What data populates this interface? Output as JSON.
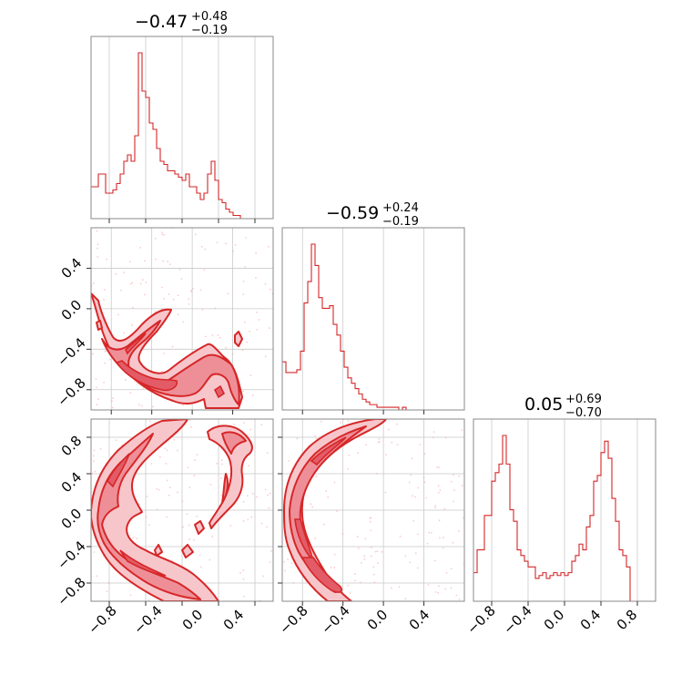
{
  "chart_data": [
    {
      "type": "histogram",
      "panel": "1d-param-1",
      "title": {
        "median": "−0.47",
        "plus": "+0.48",
        "minus": "−0.19"
      },
      "xlim": [
        -1.0,
        1.0
      ],
      "bin_edges_start": -1.0,
      "bin_width": 0.04,
      "counts": [
        10,
        10,
        14,
        14,
        8,
        8,
        9,
        11,
        14,
        18,
        20,
        18,
        26,
        52,
        40,
        38,
        30,
        28,
        22,
        18,
        17,
        15,
        15,
        14,
        13,
        12,
        14,
        10,
        10,
        8,
        6,
        8,
        14,
        18,
        12,
        6,
        5,
        3,
        2,
        1,
        1,
        0,
        0,
        0,
        0,
        0,
        0,
        0,
        0,
        0
      ],
      "xticks": [],
      "yticks": []
    },
    {
      "type": "histogram",
      "panel": "1d-param-2",
      "title": {
        "median": "−0.59",
        "plus": "+0.24",
        "minus": "−0.19"
      },
      "xlim": [
        -1.0,
        0.8
      ],
      "bin_edges_start": -1.0,
      "bin_width": 0.036,
      "counts": [
        18,
        14,
        14,
        14,
        15,
        22,
        40,
        48,
        62,
        54,
        42,
        38,
        38,
        39,
        32,
        28,
        22,
        16,
        12,
        10,
        8,
        6,
        4,
        3,
        2,
        2,
        1,
        1,
        1,
        1,
        1,
        1,
        0,
        1,
        0,
        0,
        0,
        0,
        0,
        0,
        0,
        0,
        0,
        0,
        0,
        0,
        0,
        0,
        0,
        0
      ],
      "xticks": [],
      "yticks": []
    },
    {
      "type": "histogram",
      "panel": "1d-param-3",
      "title": {
        "median": "0.05",
        "plus": "+0.69",
        "minus": "−0.70"
      },
      "xlim": [
        -1.0,
        1.0
      ],
      "bin_edges_start": -1.0,
      "bin_width": 0.04,
      "counts": [
        10,
        18,
        18,
        30,
        30,
        42,
        45,
        48,
        58,
        48,
        32,
        28,
        18,
        16,
        14,
        12,
        12,
        8,
        9,
        10,
        8,
        9,
        10,
        9,
        10,
        9,
        10,
        14,
        16,
        20,
        18,
        26,
        30,
        42,
        44,
        52,
        56,
        50,
        36,
        28,
        18,
        16,
        12,
        0,
        0,
        0,
        0,
        0,
        0,
        0
      ],
      "xticks": [
        "−0.8",
        "−0.4",
        "0.0",
        "0.4",
        "0.8"
      ],
      "xtick_values": [
        -0.8,
        -0.4,
        0.0,
        0.4,
        0.8
      ],
      "yticks": []
    },
    {
      "type": "contour",
      "panel": "2d-param-1-vs-param-2",
      "xlim": [
        -1.0,
        0.8
      ],
      "ylim": [
        -1.0,
        0.8
      ],
      "xticks": [],
      "yticks": [
        "−0.8",
        "−0.4",
        "0.0",
        "0.4"
      ],
      "ytick_values": [
        -0.8,
        -0.4,
        0.0,
        0.4
      ]
    },
    {
      "type": "contour",
      "panel": "2d-param-1-vs-param-3",
      "xlim": [
        -1.0,
        1.0
      ],
      "ylim": [
        -1.0,
        1.0
      ],
      "xticks": [
        "−0.8",
        "−0.4",
        "0.0",
        "0.4"
      ],
      "xtick_values": [
        -0.8,
        -0.4,
        0.0,
        0.4
      ],
      "yticks": [
        "−0.8",
        "−0.4",
        "0.0",
        "0.4",
        "0.8"
      ],
      "ytick_values": [
        -0.8,
        -0.4,
        0.0,
        0.4,
        0.8
      ]
    },
    {
      "type": "contour",
      "panel": "2d-param-2-vs-param-3",
      "xlim": [
        -1.0,
        0.8
      ],
      "ylim": [
        -1.0,
        1.0
      ],
      "xticks": [
        "−0.8",
        "−0.4",
        "0.0",
        "0.4"
      ],
      "xtick_values": [
        -0.8,
        -0.4,
        0.0,
        0.4
      ],
      "yticks": []
    }
  ],
  "colors": {
    "line": "#d62728",
    "band_outer": "#f7c6cb",
    "band_mid": "#ee8f98",
    "band_inner": "#e35b67",
    "grid": "#c9c9c9",
    "frame": "#888888"
  }
}
